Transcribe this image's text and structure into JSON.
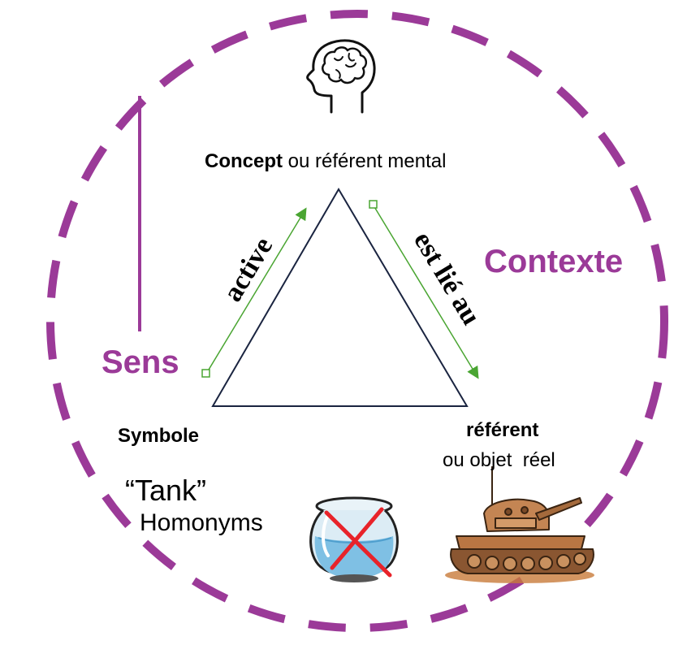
{
  "colors": {
    "circle": "#9b3a98",
    "triangle": "#1a2440",
    "arrows": "#4aa532",
    "cross": "#e8232a"
  },
  "icons": [
    "brain-head-icon",
    "fishbowl-icon",
    "tank-icon"
  ],
  "concept": {
    "bold": "Concept",
    "rest": " ou référent mental"
  },
  "symbol": {
    "label": "Symbole"
  },
  "referent": {
    "bold": "référent",
    "rest": "ou objet  réel"
  },
  "sens": "Sens",
  "contexte": "Contexte",
  "active": "active",
  "est_lie_au": "est lié au",
  "tank_word": "“Tank”",
  "homonyms": "Homonyms"
}
